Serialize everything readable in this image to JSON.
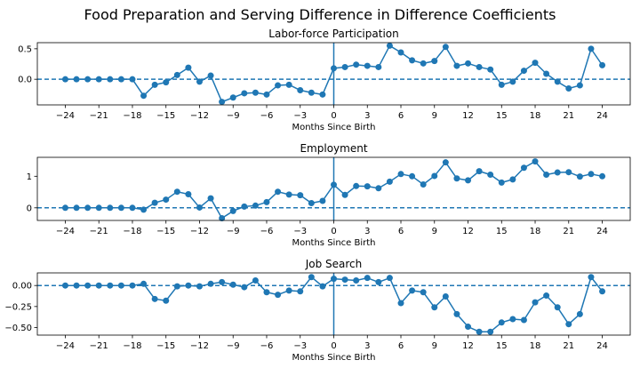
{
  "figure": {
    "title": "Food Preparation and Serving Difference in Difference Coefficients"
  },
  "colors": {
    "series": "#1f77b4",
    "axes": "#000000",
    "background": "#ffffff"
  },
  "chart_data": [
    {
      "type": "line",
      "title": "Labor-force Participation",
      "xlabel": "Months Since Birth",
      "ylabel": "",
      "xlim": [
        -26.5,
        26.5
      ],
      "ylim": [
        -0.42,
        0.6
      ],
      "xticks": [
        -24,
        -21,
        -18,
        -15,
        -12,
        -9,
        -6,
        -3,
        0,
        3,
        6,
        9,
        12,
        15,
        18,
        21,
        24
      ],
      "yticks": [
        0.0,
        0.5
      ],
      "ytick_labels": [
        "0.0",
        "0.5"
      ],
      "grid": false,
      "legend": "none",
      "hline": 0,
      "vline": 0,
      "x": [
        -24,
        -23,
        -22,
        -21,
        -20,
        -19,
        -18,
        -17,
        -16,
        -15,
        -14,
        -13,
        -12,
        -11,
        -10,
        -9,
        -8,
        -7,
        -6,
        -5,
        -4,
        -3,
        -2,
        -1,
        0,
        1,
        2,
        3,
        4,
        5,
        6,
        7,
        8,
        9,
        10,
        11,
        12,
        13,
        14,
        15,
        16,
        17,
        18,
        19,
        20,
        21,
        22,
        23,
        24
      ],
      "y": [
        0,
        0,
        0,
        0,
        0,
        0,
        0,
        -0.27,
        -0.09,
        -0.05,
        0.07,
        0.19,
        -0.04,
        0.06,
        -0.37,
        -0.3,
        -0.23,
        -0.22,
        -0.25,
        -0.1,
        -0.09,
        -0.18,
        -0.22,
        -0.25,
        0.18,
        0.2,
        0.24,
        0.22,
        0.2,
        0.55,
        0.44,
        0.31,
        0.26,
        0.3,
        0.53,
        0.22,
        0.26,
        0.2,
        0.16,
        -0.09,
        -0.04,
        0.14,
        0.27,
        0.09,
        -0.04,
        -0.15,
        -0.1,
        0.5,
        0.23
      ]
    },
    {
      "type": "line",
      "title": "Employment",
      "xlabel": "Months Since Birth",
      "ylabel": "",
      "xlim": [
        -26.5,
        26.5
      ],
      "ylim": [
        -0.4,
        1.6
      ],
      "xticks": [
        -24,
        -21,
        -18,
        -15,
        -12,
        -9,
        -6,
        -3,
        0,
        3,
        6,
        9,
        12,
        15,
        18,
        21,
        24
      ],
      "yticks": [
        0,
        1
      ],
      "ytick_labels": [
        "0",
        "1"
      ],
      "grid": false,
      "legend": "none",
      "hline": 0,
      "vline": 0,
      "x": [
        -24,
        -23,
        -22,
        -21,
        -20,
        -19,
        -18,
        -17,
        -16,
        -15,
        -14,
        -13,
        -12,
        -11,
        -10,
        -9,
        -8,
        -7,
        -6,
        -5,
        -4,
        -3,
        -2,
        -1,
        0,
        1,
        2,
        3,
        4,
        5,
        6,
        7,
        8,
        9,
        10,
        11,
        12,
        13,
        14,
        15,
        16,
        17,
        18,
        19,
        20,
        21,
        22,
        23,
        24
      ],
      "y": [
        0,
        0,
        0,
        0,
        0,
        0,
        0,
        -0.06,
        0.16,
        0.26,
        0.51,
        0.43,
        0.01,
        0.3,
        -0.33,
        -0.1,
        0.04,
        0.07,
        0.18,
        0.51,
        0.42,
        0.4,
        0.15,
        0.22,
        0.73,
        0.41,
        0.69,
        0.68,
        0.62,
        0.83,
        1.07,
        1.0,
        0.74,
        1.01,
        1.44,
        0.93,
        0.87,
        1.16,
        1.05,
        0.8,
        0.9,
        1.27,
        1.47,
        1.05,
        1.12,
        1.13,
        0.99,
        1.07,
        1.0
      ]
    },
    {
      "type": "line",
      "title": "Job Search",
      "xlabel": "Months Since Birth",
      "ylabel": "",
      "xlim": [
        -26.5,
        26.5
      ],
      "ylim": [
        -0.59,
        0.15
      ],
      "xticks": [
        -24,
        -21,
        -18,
        -15,
        -12,
        -9,
        -6,
        -3,
        0,
        3,
        6,
        9,
        12,
        15,
        18,
        21,
        24
      ],
      "yticks": [
        0.0,
        -0.25,
        -0.5
      ],
      "ytick_labels": [
        "0.00",
        "−0.25",
        "−0.50"
      ],
      "grid": false,
      "legend": "none",
      "hline": 0,
      "vline": 0,
      "x": [
        -24,
        -23,
        -22,
        -21,
        -20,
        -19,
        -18,
        -17,
        -16,
        -15,
        -14,
        -13,
        -12,
        -11,
        -10,
        -9,
        -8,
        -7,
        -6,
        -5,
        -4,
        -3,
        -2,
        -1,
        0,
        1,
        2,
        3,
        4,
        5,
        6,
        7,
        8,
        9,
        10,
        11,
        12,
        13,
        14,
        15,
        16,
        17,
        18,
        19,
        20,
        21,
        22,
        23,
        24
      ],
      "y": [
        0,
        0,
        0,
        0,
        0,
        0,
        0,
        0.02,
        -0.16,
        -0.18,
        -0.01,
        0.0,
        -0.01,
        0.02,
        0.04,
        0.01,
        -0.02,
        0.06,
        -0.08,
        -0.11,
        -0.06,
        -0.07,
        0.1,
        -0.01,
        0.08,
        0.07,
        0.06,
        0.09,
        0.04,
        0.09,
        -0.21,
        -0.06,
        -0.08,
        -0.26,
        -0.13,
        -0.34,
        -0.49,
        -0.55,
        -0.55,
        -0.44,
        -0.4,
        -0.41,
        -0.2,
        -0.12,
        -0.26,
        -0.46,
        -0.34,
        0.1,
        -0.07
      ]
    }
  ]
}
